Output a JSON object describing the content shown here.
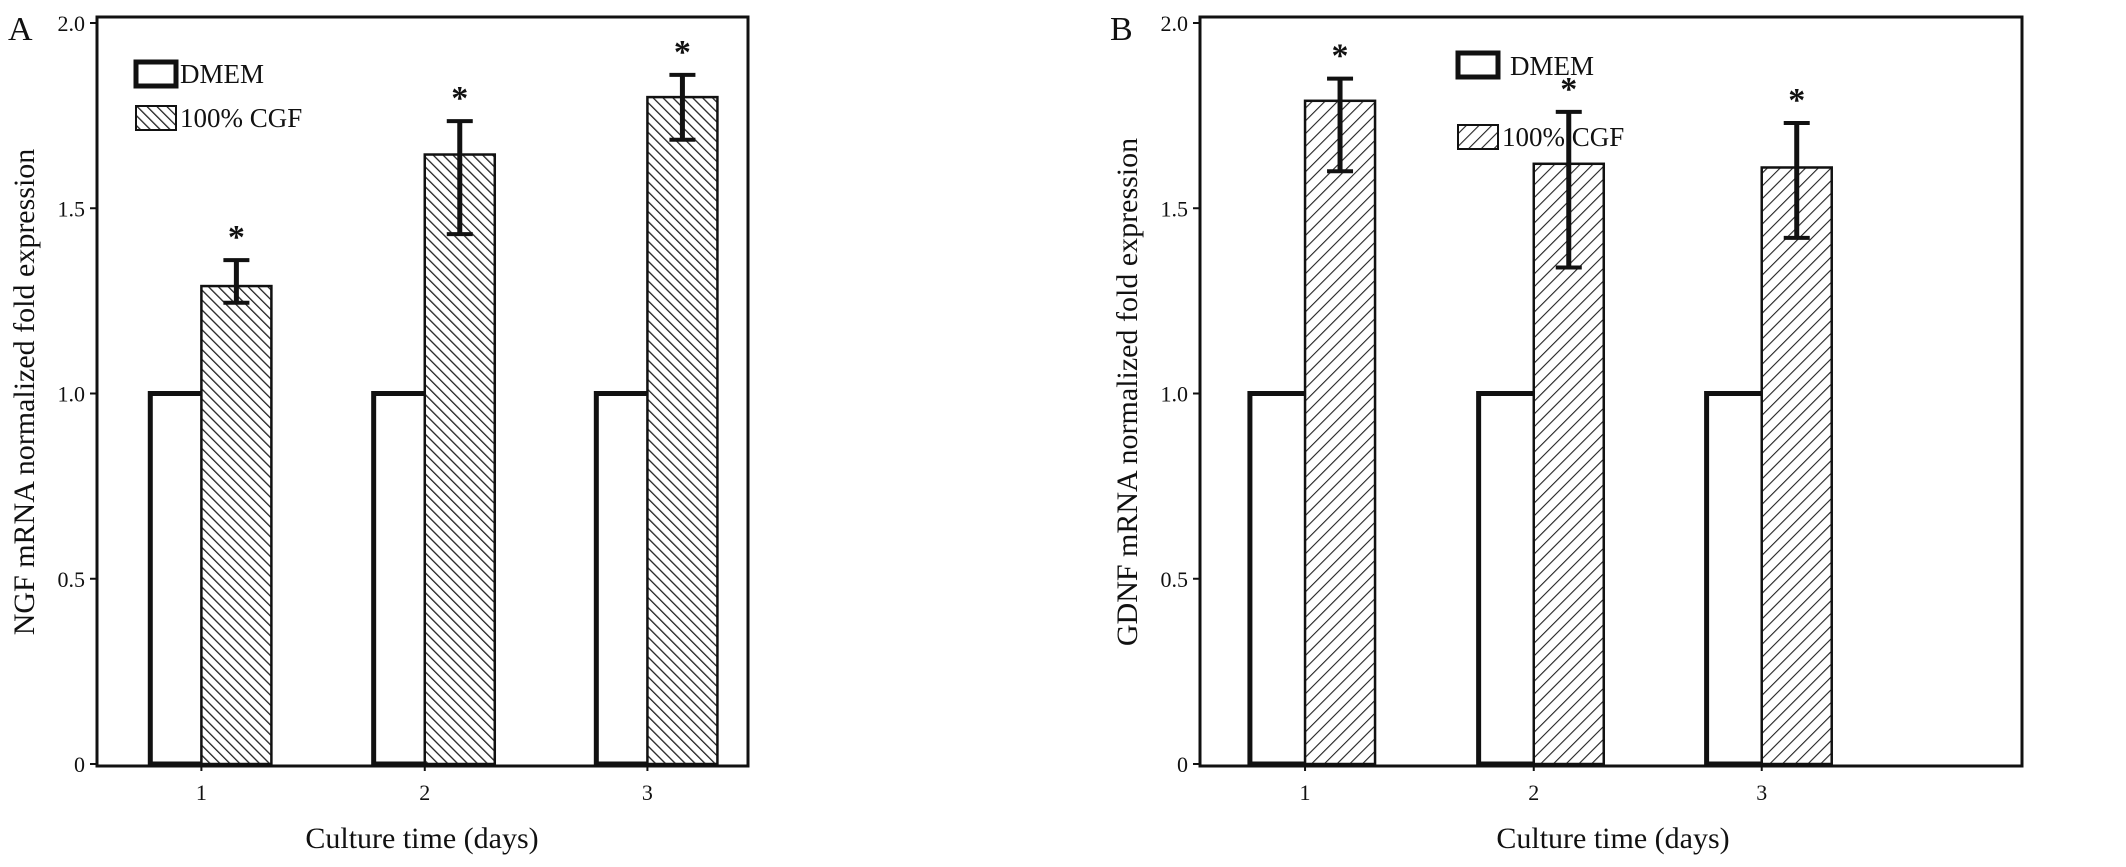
{
  "colors": {
    "stroke": "#111111",
    "background": "#ffffff",
    "hatch": "#222222"
  },
  "chart_data": [
    {
      "type": "bar",
      "panel_label": "A",
      "title": "",
      "xlabel": "Culture time (days)",
      "ylabel": "NGF mRNA normalized fold expression",
      "categories": [
        "1",
        "2",
        "3"
      ],
      "ylim": [
        0,
        2.0
      ],
      "yticks": [
        "0",
        "0.5",
        "1.0",
        "1.5",
        "2.0"
      ],
      "ytick_values": [
        0,
        0.5,
        1.0,
        1.5,
        2.0
      ],
      "legend": {
        "position": "top-left",
        "entries": [
          "DMEM",
          "100% CGF"
        ]
      },
      "grid": false,
      "series": [
        {
          "name": "DMEM",
          "values": [
            1.0,
            1.0,
            1.0
          ],
          "errors_low": [
            0,
            0,
            0
          ],
          "errors_high": [
            0,
            0,
            0
          ],
          "fill": "white"
        },
        {
          "name": "100% CGF",
          "values": [
            1.29,
            1.645,
            1.8
          ],
          "errors_low": [
            0.045,
            0.215,
            0.115
          ],
          "errors_high": [
            0.07,
            0.09,
            0.06
          ],
          "fill": "hatch-a",
          "annotations": [
            "*",
            "*",
            "*"
          ]
        }
      ]
    },
    {
      "type": "bar",
      "panel_label": "B",
      "title": "",
      "xlabel": "Culture time (days)",
      "ylabel": "GDNF mRNA normalized fold expression",
      "categories": [
        "1",
        "2",
        "3"
      ],
      "ylim": [
        0,
        2.0
      ],
      "yticks": [
        "0",
        "0.5",
        "1.0",
        "1.5",
        "2.0"
      ],
      "ytick_values": [
        0,
        0.5,
        1.0,
        1.5,
        2.0
      ],
      "legend": {
        "position": "top-center",
        "entries": [
          "DMEM",
          "100% CGF"
        ]
      },
      "grid": false,
      "series": [
        {
          "name": "DMEM",
          "values": [
            1.0,
            1.0,
            1.0
          ],
          "errors_low": [
            0,
            0,
            0
          ],
          "errors_high": [
            0,
            0,
            0
          ],
          "fill": "white"
        },
        {
          "name": "100% CGF",
          "values": [
            1.79,
            1.62,
            1.61
          ],
          "errors_low": [
            0.19,
            0.28,
            0.19
          ],
          "errors_high": [
            0.06,
            0.14,
            0.12
          ],
          "fill": "hatch-b",
          "annotations": [
            "*",
            "*",
            "*"
          ]
        }
      ]
    }
  ]
}
